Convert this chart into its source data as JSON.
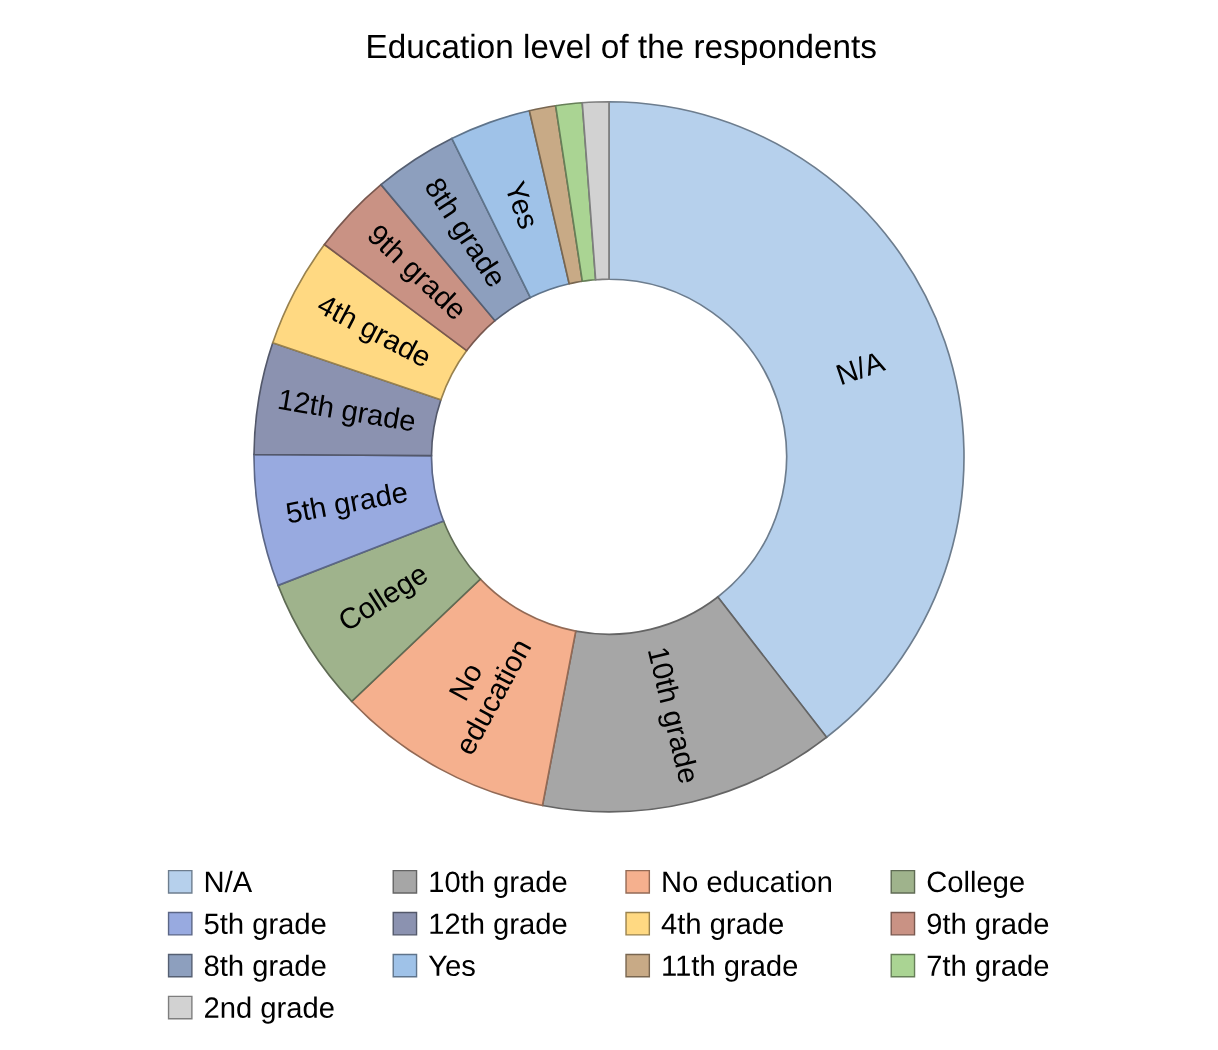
{
  "chart_data": {
    "type": "donut",
    "title": "Education level of the respondents",
    "categories": [
      "N/A",
      "10th grade",
      "No education",
      "College",
      "5th grade",
      "12th grade",
      "4th grade",
      "9th grade",
      "8th grade",
      "Yes",
      "11th grade",
      "7th grade",
      "2nd grade"
    ],
    "values": [
      39.5,
      13.5,
      9.9,
      6.2,
      6.0,
      5.1,
      5.0,
      3.7,
      3.8,
      3.7,
      1.2,
      1.2,
      1.2
    ],
    "colors": [
      "#b6d0ec",
      "#a6a6a6",
      "#f5b08e",
      "#9fb38c",
      "#98aae0",
      "#8b92b0",
      "#ffd982",
      "#c99284",
      "#8d9fbe",
      "#9fc2e8",
      "#c8aa86",
      "#aad493",
      "#d2d2d2"
    ],
    "legend": "bottom"
  }
}
